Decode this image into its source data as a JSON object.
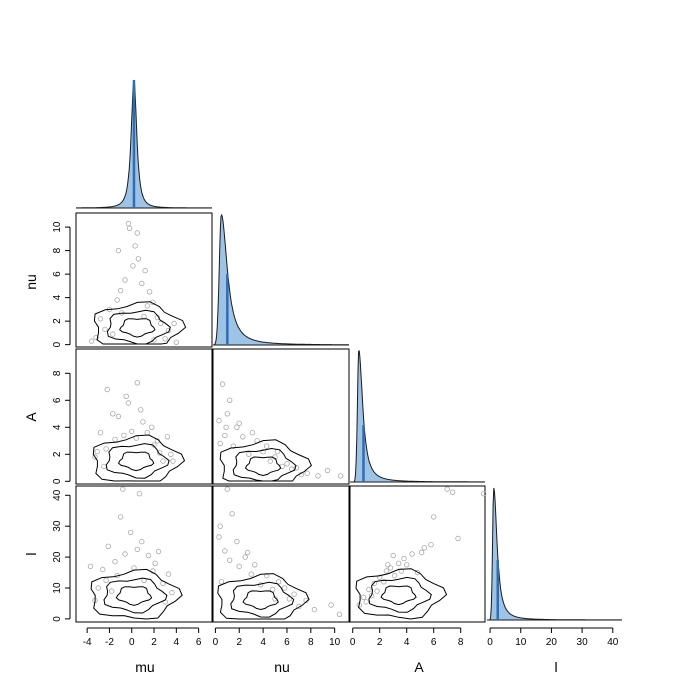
{
  "variables": [
    "mu",
    "nu",
    "A",
    "l"
  ],
  "x_tick_labels": {
    "mu": [
      "-4",
      "-2",
      "0",
      "2",
      "4",
      "6"
    ],
    "nu": [
      "0",
      "2",
      "4",
      "6",
      "8",
      "10"
    ],
    "A": [
      "0",
      "2",
      "4",
      "6",
      "8"
    ],
    "l": [
      "0",
      "10",
      "20",
      "30",
      "40"
    ]
  },
  "y_tick_labels": {
    "nu": [
      "0",
      "2",
      "4",
      "6",
      "8",
      "10"
    ],
    "A": [
      "0",
      "2",
      "4",
      "6",
      "8"
    ],
    "l": [
      "0",
      "10",
      "20",
      "30",
      "40"
    ]
  },
  "colors": {
    "density_fill": "#9dc3e6",
    "density_line": "#1a1a1a",
    "mean_line": "#2f6db5",
    "points": "#a8a8a8",
    "contours": "#000000",
    "frame": "#000000"
  },
  "chart_data": {
    "type": "scatter",
    "layout": "corner-plot",
    "ranges": {
      "mu": [
        -5,
        7.2
      ],
      "nu": [
        -0.2,
        11.2
      ],
      "A": [
        -0.2,
        9.8
      ],
      "l": [
        -1,
        43
      ]
    },
    "diagonal_density": [
      {
        "variable": "mu",
        "peak": 0.2,
        "scale": 0.35,
        "shape": "symmetric",
        "mean": 0.2
      },
      {
        "variable": "nu",
        "peak": 0.5,
        "scale": 0.6,
        "shape": "right-skewed",
        "mean": 1.0
      },
      {
        "variable": "A",
        "peak": 0.45,
        "scale": 0.35,
        "shape": "right-skewed",
        "mean": 0.8
      },
      {
        "variable": "l",
        "peak": 1.2,
        "scale": 1.3,
        "shape": "right-skewed",
        "mean": 2.5
      }
    ],
    "scatter_panels": [
      {
        "x": "mu",
        "y": "nu",
        "points": [
          [
            -1.2,
            8.0
          ],
          [
            0.5,
            9.5
          ],
          [
            -0.3,
            10.3
          ],
          [
            0.6,
            7.3
          ],
          [
            1.2,
            6.3
          ],
          [
            -0.6,
            5.5
          ],
          [
            1.6,
            4.5
          ],
          [
            -1.3,
            3.8
          ],
          [
            2.3,
            2.3
          ],
          [
            -2.4,
            1.3
          ],
          [
            -3.2,
            0.6
          ],
          [
            3.0,
            0.5
          ],
          [
            1.4,
            3.3
          ],
          [
            -0.9,
            2.7
          ],
          [
            2.6,
            1.8
          ],
          [
            0.1,
            6.7
          ],
          [
            -1.7,
            0.9
          ],
          [
            3.8,
            1.8
          ],
          [
            -0.2,
            9.9
          ],
          [
            2.0,
            0.4
          ],
          [
            -2.8,
            2.2
          ],
          [
            0.9,
            5.2
          ],
          [
            -1.0,
            4.6
          ],
          [
            1.9,
            3.6
          ],
          [
            3.3,
            1.2
          ],
          [
            -2.0,
            3.0
          ],
          [
            0.3,
            8.4
          ],
          [
            4.0,
            0.2
          ],
          [
            -3.6,
            0.3
          ],
          [
            1.1,
            2.4
          ]
        ]
      },
      {
        "x": "mu",
        "y": "A",
        "points": [
          [
            -2.2,
            6.8
          ],
          [
            -1.7,
            5.0
          ],
          [
            -1.2,
            4.8
          ],
          [
            -2.8,
            3.6
          ],
          [
            0.5,
            7.3
          ],
          [
            -0.7,
            3.4
          ],
          [
            1.8,
            4.0
          ],
          [
            2.3,
            3.0
          ],
          [
            -3.1,
            2.2
          ],
          [
            3.5,
            2.0
          ],
          [
            3.2,
            3.3
          ],
          [
            -2.5,
            1.1
          ],
          [
            0.8,
            5.3
          ],
          [
            -1.5,
            3.1
          ],
          [
            2.8,
            1.5
          ],
          [
            0.0,
            3.7
          ],
          [
            -2.3,
            2.4
          ],
          [
            2.0,
            2.7
          ],
          [
            1.4,
            3.6
          ],
          [
            -0.5,
            6.3
          ],
          [
            3.7,
            1.5
          ],
          [
            -3.3,
            1.8
          ],
          [
            1.0,
            4.4
          ],
          [
            -0.3,
            5.8
          ],
          [
            2.5,
            2.1
          ],
          [
            0.4,
            3.2
          ]
        ]
      },
      {
        "x": "nu",
        "y": "A",
        "points": [
          [
            0.6,
            7.2
          ],
          [
            1.0,
            5.0
          ],
          [
            0.3,
            4.5
          ],
          [
            1.8,
            4.0
          ],
          [
            0.8,
            3.4
          ],
          [
            2.3,
            3.3
          ],
          [
            3.5,
            3.0
          ],
          [
            4.0,
            2.2
          ],
          [
            5.0,
            1.8
          ],
          [
            6.0,
            1.3
          ],
          [
            6.8,
            1.0
          ],
          [
            7.7,
            0.6
          ],
          [
            9.4,
            0.8
          ],
          [
            10.5,
            0.4
          ],
          [
            2.8,
            2.0
          ],
          [
            1.5,
            2.6
          ],
          [
            4.6,
            1.5
          ],
          [
            5.6,
            1.1
          ],
          [
            7.2,
            0.5
          ],
          [
            0.4,
            2.8
          ],
          [
            3.1,
            3.6
          ],
          [
            2.0,
            4.3
          ],
          [
            8.6,
            0.4
          ],
          [
            1.2,
            6.0
          ],
          [
            4.3,
            2.6
          ],
          [
            0.9,
            4.0
          ],
          [
            6.4,
            0.9
          ],
          [
            5.2,
            2.2
          ]
        ]
      },
      {
        "x": "mu",
        "y": "l",
        "points": [
          [
            -0.8,
            42.0
          ],
          [
            0.7,
            40.5
          ],
          [
            -1.0,
            33.0
          ],
          [
            -2.1,
            23.5
          ],
          [
            0.9,
            25.0
          ],
          [
            -0.6,
            21.0
          ],
          [
            1.5,
            20.5
          ],
          [
            2.4,
            21.8
          ],
          [
            -2.6,
            16.0
          ],
          [
            3.3,
            14.5
          ],
          [
            -3.0,
            10.0
          ],
          [
            2.8,
            11.5
          ],
          [
            -1.5,
            18.5
          ],
          [
            0.2,
            16.5
          ],
          [
            1.9,
            15.5
          ],
          [
            -3.7,
            17.0
          ],
          [
            3.6,
            8.5
          ],
          [
            -0.1,
            28.0
          ],
          [
            -2.3,
            12.5
          ],
          [
            2.1,
            18.0
          ],
          [
            1.1,
            12.5
          ],
          [
            -1.3,
            14.0
          ],
          [
            3.0,
            5.5
          ],
          [
            -3.3,
            6.0
          ],
          [
            0.5,
            22.5
          ],
          [
            -1.8,
            9.0
          ]
        ]
      },
      {
        "x": "nu",
        "y": "l",
        "points": [
          [
            1.0,
            42.0
          ],
          [
            1.4,
            34.0
          ],
          [
            0.4,
            30.0
          ],
          [
            1.8,
            25.0
          ],
          [
            0.8,
            22.0
          ],
          [
            2.5,
            20.0
          ],
          [
            3.3,
            17.5
          ],
          [
            4.3,
            14.0
          ],
          [
            5.3,
            12.0
          ],
          [
            5.8,
            10.0
          ],
          [
            6.6,
            8.0
          ],
          [
            7.6,
            6.0
          ],
          [
            9.7,
            4.5
          ],
          [
            10.4,
            1.5
          ],
          [
            3.0,
            14.5
          ],
          [
            2.0,
            17.0
          ],
          [
            4.8,
            9.5
          ],
          [
            6.2,
            6.5
          ],
          [
            7.0,
            4.0
          ],
          [
            0.5,
            12.0
          ],
          [
            1.2,
            19.0
          ],
          [
            3.8,
            11.0
          ],
          [
            8.3,
            3.0
          ],
          [
            5.0,
            6.5
          ],
          [
            2.7,
            21.5
          ],
          [
            0.3,
            26.5
          ]
        ]
      },
      {
        "x": "A",
        "y": "l",
        "points": [
          [
            7.0,
            42.0
          ],
          [
            7.4,
            41.0
          ],
          [
            9.7,
            40.5
          ],
          [
            6.0,
            33.0
          ],
          [
            7.8,
            26.0
          ],
          [
            5.8,
            24.0
          ],
          [
            5.1,
            21.5
          ],
          [
            4.4,
            21.0
          ],
          [
            3.8,
            19.5
          ],
          [
            3.4,
            18.0
          ],
          [
            2.8,
            16.5
          ],
          [
            2.5,
            15.5
          ],
          [
            2.0,
            13.5
          ],
          [
            1.6,
            11.5
          ],
          [
            1.2,
            9.5
          ],
          [
            0.8,
            7.0
          ],
          [
            0.5,
            4.5
          ],
          [
            3.1,
            14.0
          ],
          [
            4.0,
            17.5
          ],
          [
            2.3,
            12.0
          ],
          [
            1.8,
            9.0
          ],
          [
            4.8,
            15.0
          ],
          [
            3.0,
            20.5
          ],
          [
            1.4,
            7.5
          ],
          [
            2.6,
            17.5
          ],
          [
            5.3,
            23.0
          ],
          [
            3.6,
            15.5
          ],
          [
            1.0,
            5.5
          ]
        ]
      }
    ]
  }
}
